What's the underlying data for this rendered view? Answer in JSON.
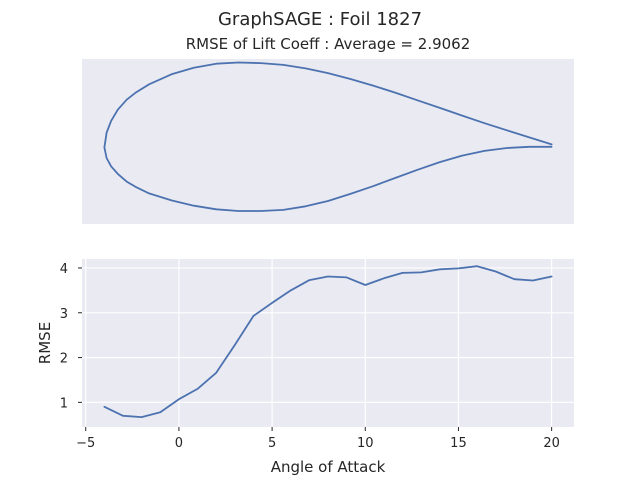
{
  "figure": {
    "suptitle": "GraphSAGE   :   Foil 1827",
    "subtitle": "RMSE of Lift Coeff : Average = 2.9062"
  },
  "chart_data": [
    {
      "type": "line",
      "name": "airfoil-shape",
      "axes_visible": false,
      "xlim": [
        -0.05,
        1.05
      ],
      "ylim": [
        -0.13,
        0.15
      ],
      "upper": {
        "x": [
          1.0,
          0.95,
          0.9,
          0.85,
          0.8,
          0.75,
          0.7,
          0.65,
          0.6,
          0.55,
          0.5,
          0.45,
          0.4,
          0.35,
          0.3,
          0.25,
          0.2,
          0.15,
          0.1,
          0.07,
          0.05,
          0.03,
          0.015,
          0.005,
          0.0
        ],
        "y": [
          0.005,
          0.017,
          0.029,
          0.041,
          0.054,
          0.067,
          0.08,
          0.093,
          0.105,
          0.116,
          0.126,
          0.134,
          0.14,
          0.143,
          0.144,
          0.142,
          0.135,
          0.124,
          0.107,
          0.093,
          0.081,
          0.064,
          0.045,
          0.025,
          0.0
        ]
      },
      "lower": {
        "x": [
          0.0,
          0.005,
          0.015,
          0.03,
          0.05,
          0.07,
          0.1,
          0.15,
          0.2,
          0.25,
          0.3,
          0.35,
          0.4,
          0.45,
          0.5,
          0.55,
          0.6,
          0.65,
          0.7,
          0.75,
          0.8,
          0.85,
          0.9,
          0.95,
          1.0
        ],
        "y": [
          0.0,
          -0.018,
          -0.032,
          -0.045,
          -0.058,
          -0.067,
          -0.078,
          -0.09,
          -0.099,
          -0.105,
          -0.108,
          -0.108,
          -0.106,
          -0.1,
          -0.091,
          -0.079,
          -0.066,
          -0.052,
          -0.038,
          -0.025,
          -0.014,
          -0.006,
          -0.001,
          0.001,
          0.001
        ]
      }
    },
    {
      "type": "line",
      "name": "rmse-vs-angle",
      "xlabel": "Angle of Attack",
      "ylabel": "RMSE",
      "xlim": [
        -5.2,
        21.2
      ],
      "ylim": [
        0.45,
        4.2
      ],
      "xticks": [
        -5,
        0,
        5,
        10,
        15,
        20
      ],
      "yticks": [
        1,
        2,
        3,
        4
      ],
      "grid": true,
      "x": [
        -4,
        -3,
        -2,
        -1,
        0,
        1,
        2,
        3,
        4,
        5,
        6,
        7,
        8,
        9,
        10,
        11,
        12,
        13,
        14,
        15,
        16,
        17,
        18,
        19,
        20
      ],
      "y": [
        0.9,
        0.7,
        0.67,
        0.78,
        1.07,
        1.3,
        1.66,
        2.28,
        2.93,
        3.22,
        3.5,
        3.73,
        3.81,
        3.79,
        3.62,
        3.77,
        3.89,
        3.9,
        3.97,
        3.99,
        4.04,
        3.92,
        3.75,
        3.72,
        3.81
      ]
    }
  ]
}
